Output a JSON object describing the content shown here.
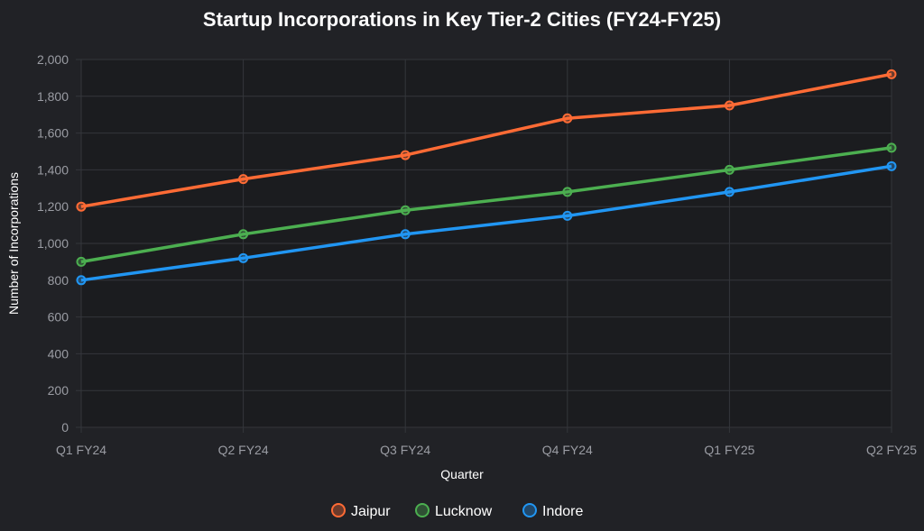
{
  "chart_data": {
    "type": "line",
    "title": "Startup Incorporations in Key Tier-2 Cities (FY24-FY25)",
    "xlabel": "Quarter",
    "ylabel": "Number of Incorporations",
    "categories": [
      "Q1 FY24",
      "Q2 FY24",
      "Q3 FY24",
      "Q4 FY24",
      "Q1 FY25",
      "Q2 FY25"
    ],
    "ylim": [
      0,
      2000
    ],
    "yticks": [
      0,
      200,
      400,
      600,
      800,
      1000,
      1200,
      1400,
      1600,
      1800,
      2000
    ],
    "ytick_labels": [
      "0",
      "200",
      "400",
      "600",
      "800",
      "1,000",
      "1,200",
      "1,400",
      "1,600",
      "1,800",
      "2,000"
    ],
    "grid": true,
    "legend_position": "bottom",
    "series": [
      {
        "name": "Jaipur",
        "color": "#ff6b35",
        "values": [
          1200,
          1350,
          1480,
          1680,
          1750,
          1920
        ]
      },
      {
        "name": "Lucknow",
        "color": "#4caf50",
        "values": [
          900,
          1050,
          1180,
          1280,
          1400,
          1520
        ]
      },
      {
        "name": "Indore",
        "color": "#2196f3",
        "values": [
          800,
          920,
          1050,
          1150,
          1280,
          1420
        ]
      }
    ]
  }
}
